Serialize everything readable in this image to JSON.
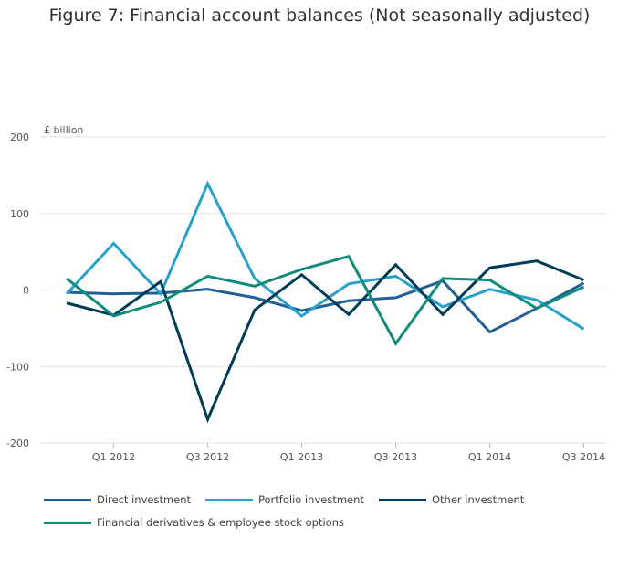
{
  "chart_data": {
    "type": "line",
    "title": "Figure 7: Financial account balances (Not seasonally adjusted)",
    "ylabel": "£ billion",
    "ylim": [
      -200,
      200
    ],
    "yticks": [
      200,
      100,
      0,
      -100,
      -200
    ],
    "x": [
      "Q4 2011",
      "Q1 2012",
      "Q2 2012",
      "Q3 2012",
      "Q4 2012",
      "Q1 2013",
      "Q2 2013",
      "Q3 2013",
      "Q4 2013",
      "Q1 2014",
      "Q2 2014",
      "Q3 2014"
    ],
    "xtick_labels": [
      "Q1 2012",
      "Q3 2012",
      "Q1 2013",
      "Q3 2013",
      "Q1 2014",
      "Q3 2014"
    ],
    "grid": true,
    "legend_position": "bottom",
    "series": [
      {
        "name": "Direct investment",
        "color": "#206095",
        "values": [
          -3,
          -5,
          -4,
          1,
          -10,
          -27,
          -14,
          -10,
          12,
          -55,
          -24,
          9
        ]
      },
      {
        "name": "Portfolio investment",
        "color": "#27a0cc",
        "values": [
          -5,
          61,
          -5,
          139,
          15,
          -34,
          8,
          18,
          -22,
          1,
          -13,
          -51
        ]
      },
      {
        "name": "Other investment",
        "color": "#003c57",
        "values": [
          -17,
          -33,
          11,
          -169,
          -26,
          20,
          -32,
          33,
          -32,
          29,
          38,
          13
        ]
      },
      {
        "name": "Financial derivatives & employee stock options",
        "color": "#118c7b",
        "values": [
          15,
          -34,
          -16,
          18,
          5,
          27,
          44,
          -70,
          15,
          13,
          -24,
          4
        ]
      }
    ]
  }
}
